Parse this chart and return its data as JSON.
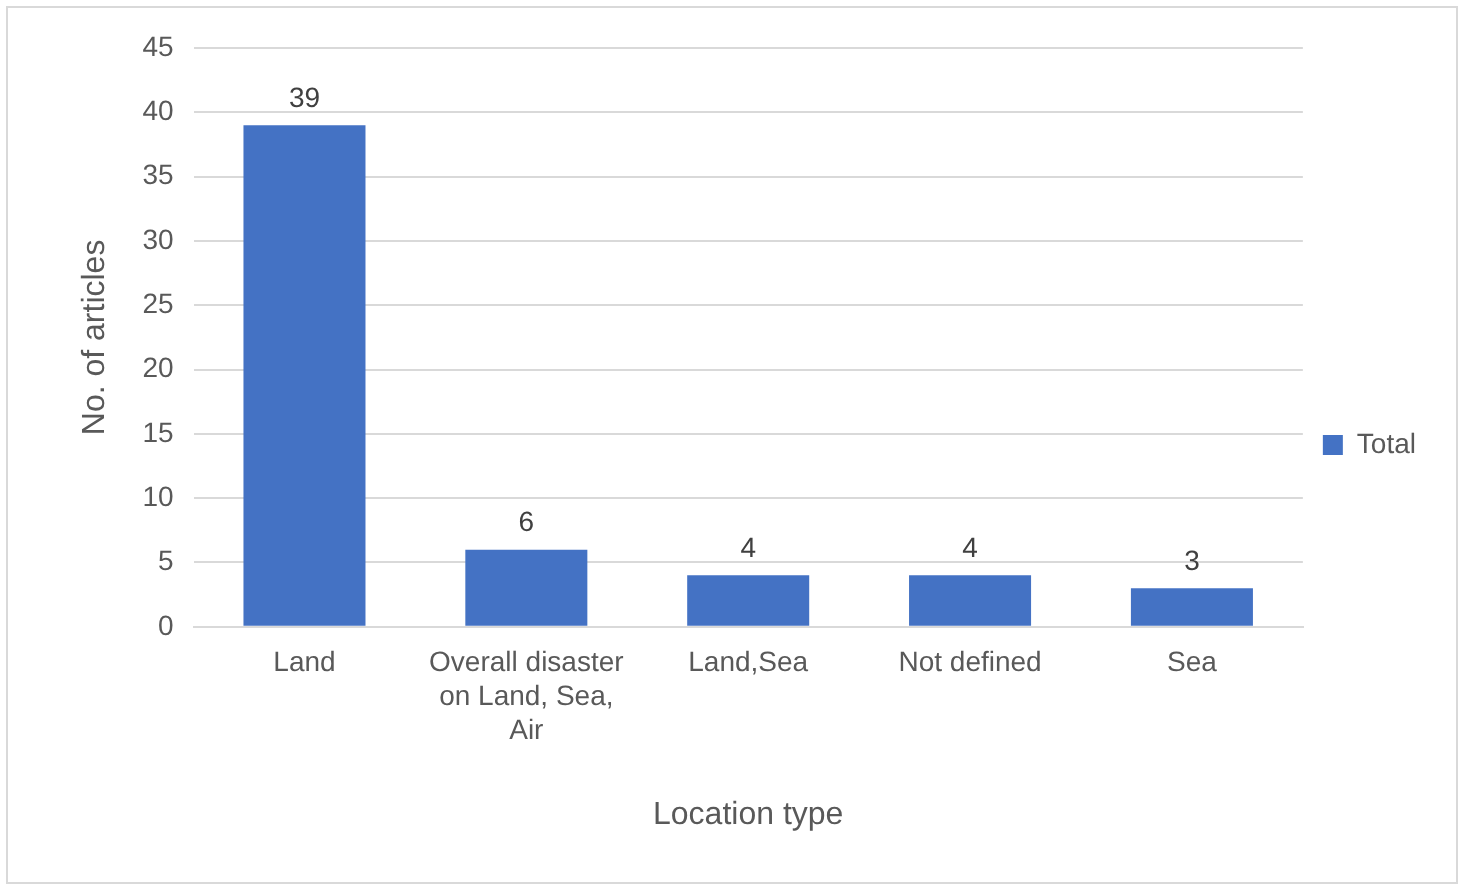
{
  "chart_data": {
    "type": "bar",
    "xlabel": "Location type",
    "ylabel": "No. of articles",
    "categories": [
      "Land",
      "Overall disaster on Land, Sea, Air",
      "Land,Sea",
      "Not defined",
      "Sea"
    ],
    "series": [
      {
        "name": "Total",
        "color": "#4472c4",
        "values": [
          39,
          6,
          4,
          4,
          3
        ]
      }
    ],
    "ylim": [
      0,
      45
    ],
    "yticks": [
      0,
      5,
      10,
      15,
      20,
      25,
      30,
      35,
      40,
      45
    ],
    "grid": "y",
    "legend": "right",
    "data_labels": true
  }
}
